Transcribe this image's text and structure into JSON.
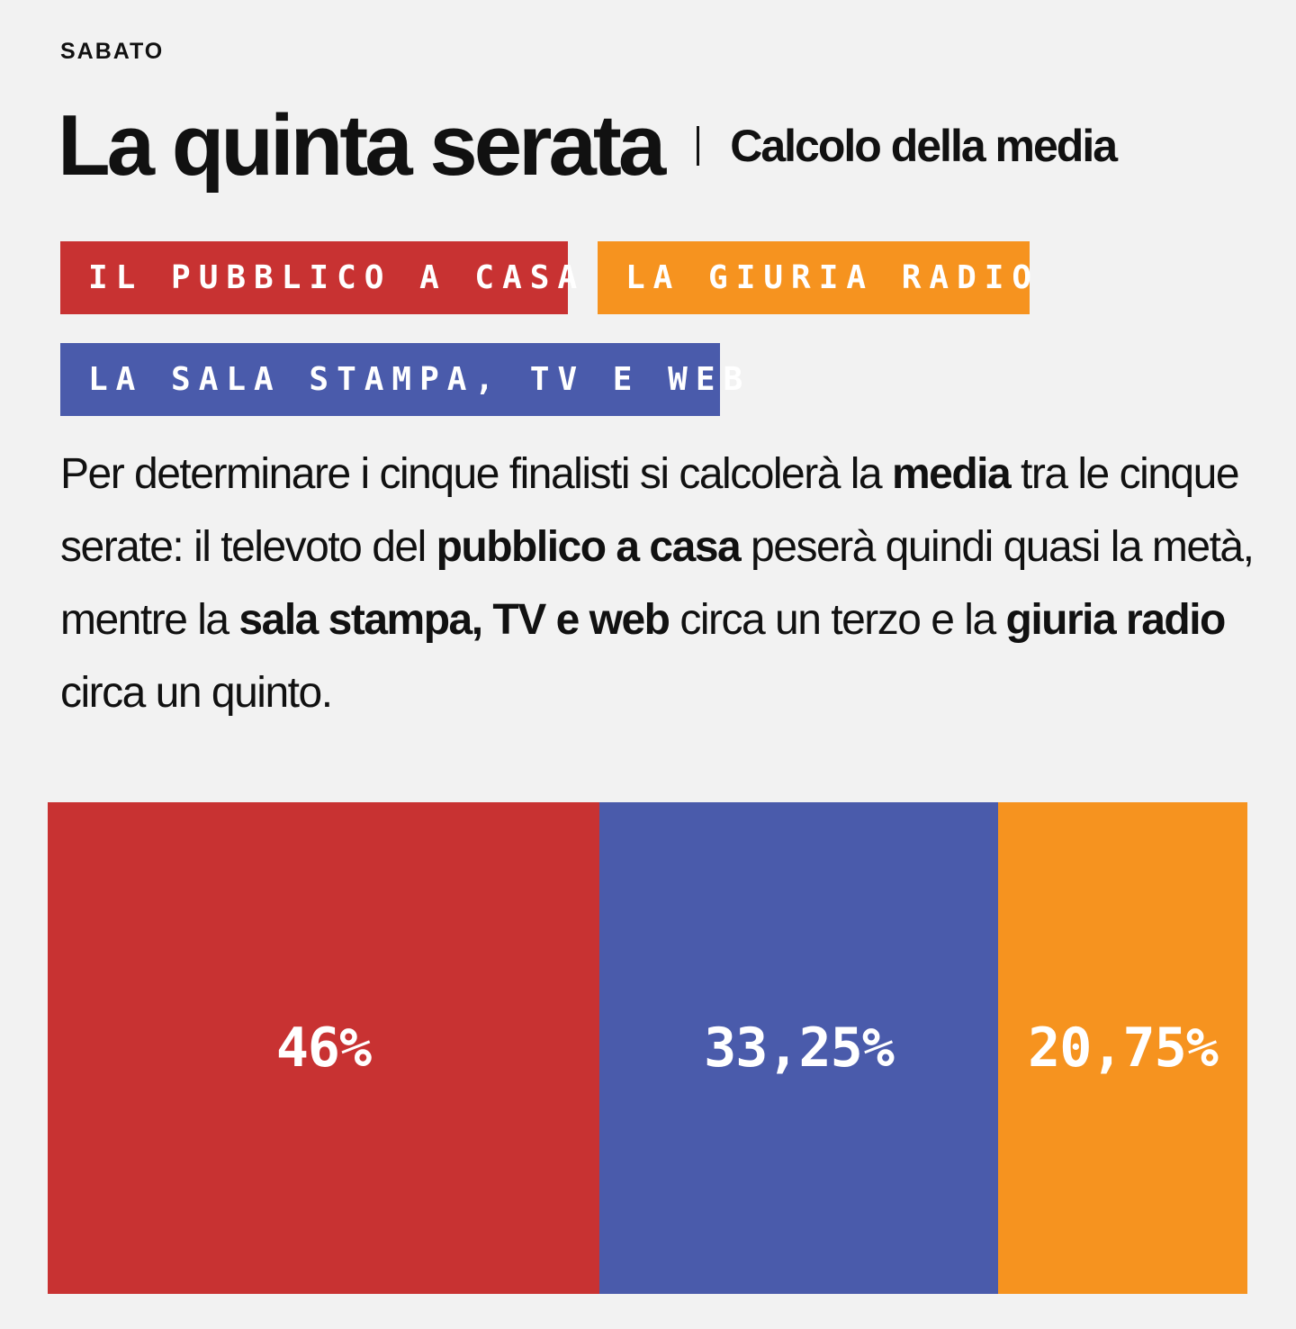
{
  "header": {
    "kicker": "SABATO",
    "title": "La quinta serata",
    "subtitle": "Calcolo della media"
  },
  "tags": [
    {
      "label": "IL PUBBLICO A CASA",
      "color": "#c83232"
    },
    {
      "label": "LA GIURIA RADIO",
      "color": "#f6931f"
    },
    {
      "label": "LA SALA STAMPA, TV E WEB",
      "color": "#4a5bab"
    }
  ],
  "description": {
    "t1": "Per determinare i cinque finalisti si calcolerà la ",
    "b1": "media",
    "t2": " tra le cinque serate: il televoto del ",
    "b2": "pubblico a casa",
    "t3": " peserà quindi quasi la metà, mentre la ",
    "b3": "sala stampa, TV e web",
    "t4": " circa un terzo e la ",
    "b4": "giuria radio",
    "t5": " circa un quinto."
  },
  "colors": {
    "home": "#c83232",
    "press": "#4a5bab",
    "radio": "#f6931f",
    "background": "#f2f2f2"
  },
  "chart_data": {
    "type": "bar",
    "orientation": "stacked-horizontal-100",
    "title": "",
    "categories": [
      "IL PUBBLICO A CASA",
      "LA SALA STAMPA, TV E WEB",
      "LA GIURIA RADIO"
    ],
    "values": [
      46,
      33.25,
      20.75
    ],
    "value_labels": [
      "46%",
      "33,25%",
      "20,75%"
    ],
    "colors": [
      "#c83232",
      "#4a5bab",
      "#f6931f"
    ],
    "total": 100,
    "grid": false,
    "legend": "top"
  }
}
